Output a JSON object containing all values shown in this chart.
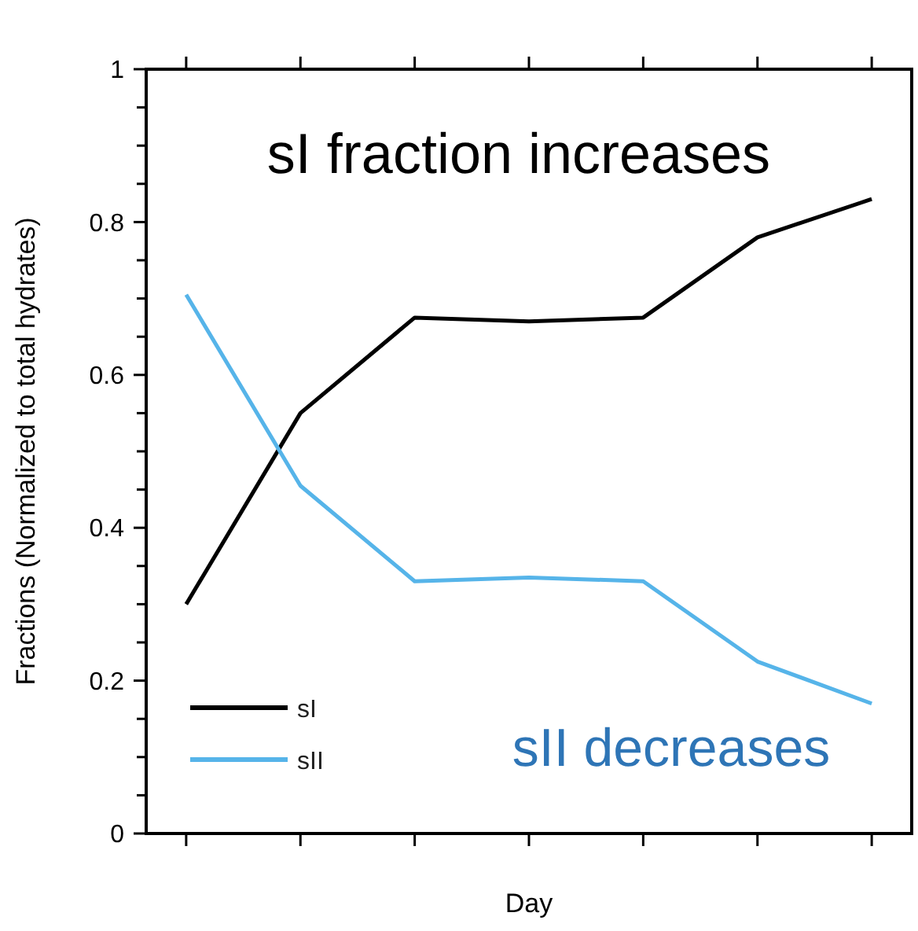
{
  "chart_data": {
    "type": "line",
    "xlabel": "Day",
    "ylabel": "Fractions (Normalized to total hydrates)",
    "categories": [
      null,
      null,
      null,
      null,
      null,
      null,
      null
    ],
    "series": [
      {
        "name": "sI",
        "color": "#000000",
        "values": [
          0.3,
          0.55,
          0.675,
          0.67,
          0.675,
          0.78,
          0.83
        ]
      },
      {
        "name": "sII",
        "color": "#56b4e9",
        "values": [
          0.705,
          0.455,
          0.33,
          0.335,
          0.33,
          0.225,
          0.17
        ]
      }
    ],
    "ylim": [
      0,
      1
    ],
    "yticks": [
      0,
      {
        "value": 0.05,
        "label": null
      },
      {
        "value": 0.1,
        "label": null
      },
      {
        "value": 0.15,
        "label": null
      },
      0.2,
      {
        "value": 0.25,
        "label": null
      },
      {
        "value": 0.3,
        "label": null
      },
      {
        "value": 0.35,
        "label": null
      },
      0.4,
      {
        "value": 0.45,
        "label": null
      },
      {
        "value": 0.5,
        "label": null
      },
      {
        "value": 0.55,
        "label": null
      },
      0.6,
      {
        "value": 0.65,
        "label": null
      },
      {
        "value": 0.7,
        "label": null
      },
      {
        "value": 0.75,
        "label": null
      },
      0.8,
      {
        "value": 0.85,
        "label": null
      },
      {
        "value": 0.9,
        "label": null
      },
      {
        "value": 0.95,
        "label": null
      },
      1
    ],
    "grid": false,
    "legend": "bottom left",
    "marker": "none",
    "line_style": "solid",
    "annotations": [
      "sI fraction increases",
      "sII decreases"
    ]
  }
}
